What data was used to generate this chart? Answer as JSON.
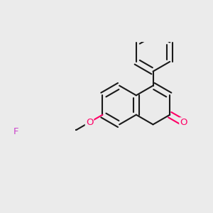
{
  "bg_color": "#ebebeb",
  "bond_color": "#1a1a1a",
  "o_color": "#ff0066",
  "f_color": "#cc44cc",
  "lw": 1.5,
  "dbo": 0.042,
  "figsize": [
    3.0,
    3.0
  ],
  "dpi": 100,
  "xlim": [
    -0.8,
    1.1
  ],
  "ylim": [
    -0.9,
    0.9
  ]
}
